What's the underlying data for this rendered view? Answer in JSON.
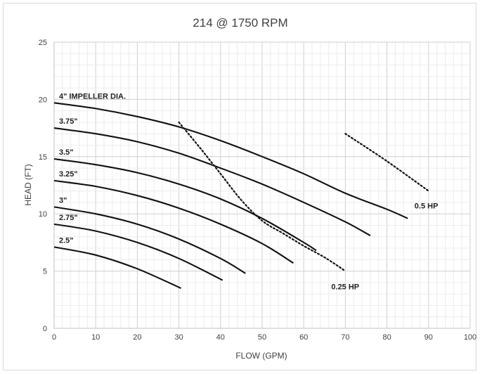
{
  "chart_data": {
    "type": "line",
    "title": "214 @ 1750 RPM",
    "xlabel": "FLOW (GPM)",
    "ylabel": "HEAD (FT)",
    "xlim": [
      0,
      100
    ],
    "ylim": [
      0,
      25
    ],
    "xticks": [
      0,
      10,
      20,
      30,
      40,
      50,
      60,
      70,
      80,
      90,
      100
    ],
    "yticks": [
      0,
      5,
      10,
      15,
      20,
      25
    ],
    "grid": "major and minor",
    "series": [
      {
        "name": "4\" IMPELLER DIA.",
        "style": "solid",
        "x": [
          0,
          10,
          20,
          30,
          40,
          50,
          60,
          70,
          80,
          85
        ],
        "y": [
          19.7,
          19.2,
          18.5,
          17.6,
          16.4,
          15.0,
          13.5,
          11.8,
          10.4,
          9.6
        ]
      },
      {
        "name": "3.75\"",
        "style": "solid",
        "x": [
          0,
          10,
          20,
          30,
          40,
          50,
          60,
          70,
          76
        ],
        "y": [
          17.5,
          17.0,
          16.3,
          15.3,
          14.0,
          12.6,
          11.0,
          9.3,
          8.1
        ]
      },
      {
        "name": "3.5\"",
        "style": "solid",
        "x": [
          0,
          10,
          20,
          30,
          40,
          50,
          60,
          63
        ],
        "y": [
          14.8,
          14.3,
          13.6,
          12.6,
          11.3,
          9.6,
          7.5,
          6.8
        ]
      },
      {
        "name": "3.25\"",
        "style": "solid",
        "x": [
          0,
          10,
          20,
          30,
          40,
          50,
          57.5
        ],
        "y": [
          12.9,
          12.4,
          11.6,
          10.5,
          9.1,
          7.4,
          5.7
        ]
      },
      {
        "name": "3\"",
        "style": "solid",
        "x": [
          0,
          10,
          20,
          30,
          40,
          46
        ],
        "y": [
          10.6,
          10.0,
          9.1,
          7.8,
          6.1,
          4.8
        ]
      },
      {
        "name": "2.75\"",
        "style": "solid",
        "x": [
          0,
          10,
          20,
          30,
          40.5
        ],
        "y": [
          9.1,
          8.5,
          7.5,
          6.1,
          4.2
        ]
      },
      {
        "name": "2.5\"",
        "style": "solid",
        "x": [
          0,
          10,
          20,
          30.5
        ],
        "y": [
          7.1,
          6.4,
          5.2,
          3.5
        ]
      },
      {
        "name": "0.25 HP",
        "style": "dotted",
        "x": [
          30,
          35,
          40,
          45,
          50,
          55,
          60,
          65,
          70
        ],
        "y": [
          18.0,
          15.8,
          13.5,
          11.2,
          9.4,
          8.3,
          7.2,
          6.2,
          5.0
        ]
      },
      {
        "name": "0.5 HP",
        "style": "dotted",
        "x": [
          70,
          80,
          90
        ],
        "y": [
          17.0,
          14.6,
          12.0
        ]
      }
    ]
  }
}
